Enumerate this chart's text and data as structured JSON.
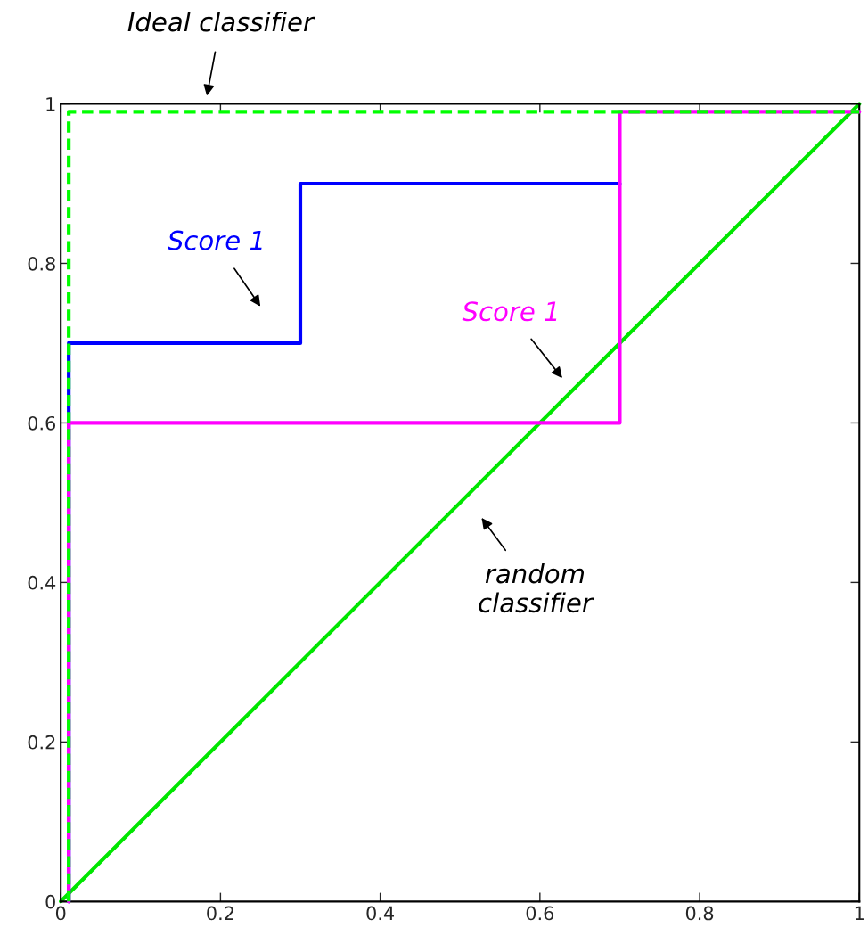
{
  "chart_data": {
    "type": "line",
    "series": [
      {
        "color": "#00e600",
        "line_style": "solid",
        "x": [
          0,
          1
        ],
        "values": [
          0,
          1
        ]
      },
      {
        "color": "#0000ff",
        "line_style": "solid",
        "x": [
          0.01,
          0.01,
          0.3,
          0.3,
          0.7
        ],
        "values": [
          0,
          0.7,
          0.7,
          0.9,
          0.9
        ]
      },
      {
        "color": "#ff00ff",
        "line_style": "solid",
        "x": [
          0.01,
          0.01,
          0.7,
          0.7,
          1
        ],
        "values": [
          0,
          0.6,
          0.6,
          0.99,
          0.99
        ]
      },
      {
        "color": "#00ff00",
        "line_style": "dashed",
        "x": [
          0.01,
          0.01,
          1
        ],
        "values": [
          0,
          0.99,
          0.99
        ]
      }
    ],
    "xlim": [
      0,
      1
    ],
    "ylim": [
      0,
      1
    ],
    "xticks": [
      0,
      0.2,
      0.4,
      0.6,
      0.8,
      1
    ],
    "yticks": [
      0,
      0.2,
      0.4,
      0.6,
      0.8,
      1
    ],
    "grid": false,
    "legend": false,
    "marker": "none",
    "annotations": [
      "Ideal classifier",
      "Score 1",
      "Score 1",
      "random\nclassifier"
    ]
  }
}
